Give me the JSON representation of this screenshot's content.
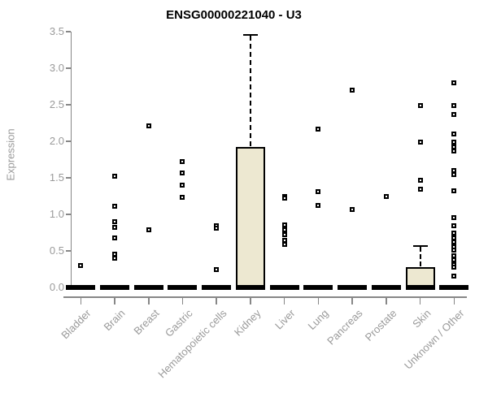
{
  "chart_data": {
    "type": "boxplot",
    "title": "ENSG00000221040 - U3",
    "ylabel": "Expression",
    "xlabel": "",
    "ylim": [
      0,
      3.5
    ],
    "ytick_labels": [
      "0.0",
      "0.5",
      "1.0",
      "1.5",
      "2.0",
      "2.5",
      "3.0",
      "3.5"
    ],
    "grid": false,
    "legend": "none",
    "categories": [
      "Bladder",
      "Brain",
      "Breast",
      "Gastric",
      "Hematopoietic cells",
      "Kidney",
      "Liver",
      "Lung",
      "Pancreas",
      "Prostate",
      "Skin",
      "Unknown / Other"
    ],
    "boxes": [
      {
        "category": "Bladder",
        "median": 0,
        "q1": 0,
        "q3": 0,
        "whisker_low": 0,
        "whisker_high": 0,
        "outliers": [
          0.3
        ]
      },
      {
        "category": "Brain",
        "median": 0,
        "q1": 0,
        "q3": 0,
        "whisker_low": 0,
        "whisker_high": 0,
        "outliers": [
          1.52,
          1.11,
          0.9,
          0.82,
          0.68,
          0.46,
          0.4
        ]
      },
      {
        "category": "Breast",
        "median": 0,
        "q1": 0,
        "q3": 0,
        "whisker_low": 0,
        "whisker_high": 0,
        "outliers": [
          2.21,
          0.79
        ]
      },
      {
        "category": "Gastric",
        "median": 0,
        "q1": 0,
        "q3": 0,
        "whisker_low": 0,
        "whisker_high": 0,
        "outliers": [
          1.72,
          1.57,
          1.4,
          1.23
        ]
      },
      {
        "category": "Hematopoietic cells",
        "median": 0,
        "q1": 0,
        "q3": 0,
        "whisker_low": 0,
        "whisker_high": 0,
        "outliers": [
          0.85,
          0.81,
          0.24
        ]
      },
      {
        "category": "Kidney",
        "median": 0,
        "q1": 0,
        "q3": 1.92,
        "whisker_low": 0,
        "whisker_high": 3.46,
        "outliers": []
      },
      {
        "category": "Liver",
        "median": 0,
        "q1": 0,
        "q3": 0,
        "whisker_low": 0,
        "whisker_high": 0,
        "outliers": [
          1.24,
          1.22,
          0.86,
          0.79,
          0.72,
          0.65,
          0.59
        ]
      },
      {
        "category": "Lung",
        "median": 0,
        "q1": 0,
        "q3": 0,
        "whisker_low": 0,
        "whisker_high": 0,
        "outliers": [
          2.17,
          1.31,
          1.12
        ]
      },
      {
        "category": "Pancreas",
        "median": 0,
        "q1": 0,
        "q3": 0,
        "whisker_low": 0,
        "whisker_high": 0,
        "outliers": [
          2.7,
          1.07
        ]
      },
      {
        "category": "Prostate",
        "median": 0,
        "q1": 0,
        "q3": 0,
        "whisker_low": 0,
        "whisker_high": 0,
        "outliers": [
          1.24
        ]
      },
      {
        "category": "Skin",
        "median": 0,
        "q1": 0,
        "q3": 0.28,
        "whisker_low": 0,
        "whisker_high": 0.57,
        "outliers": [
          2.49,
          1.99,
          1.47,
          1.34
        ]
      },
      {
        "category": "Unknown / Other",
        "median": 0,
        "q1": 0,
        "q3": 0,
        "whisker_low": 0,
        "whisker_high": 0,
        "outliers": [
          2.8,
          2.49,
          2.37,
          2.1,
          1.99,
          1.92,
          1.87,
          1.6,
          1.55,
          1.32,
          0.96,
          0.84,
          0.74,
          0.68,
          0.62,
          0.56,
          0.51,
          0.43,
          0.38,
          0.31,
          0.28,
          0.16
        ]
      }
    ],
    "colors": {
      "box_fill": "#EDE8D1",
      "box_border": "#000000",
      "median": "#000000",
      "whisker": "#000000",
      "outlier_border": "#000000",
      "outlier_fill": "#ffffff",
      "axis": "#878787",
      "tick_label": "#9a9a9a",
      "title": "#000000",
      "background": "#ffffff"
    }
  }
}
